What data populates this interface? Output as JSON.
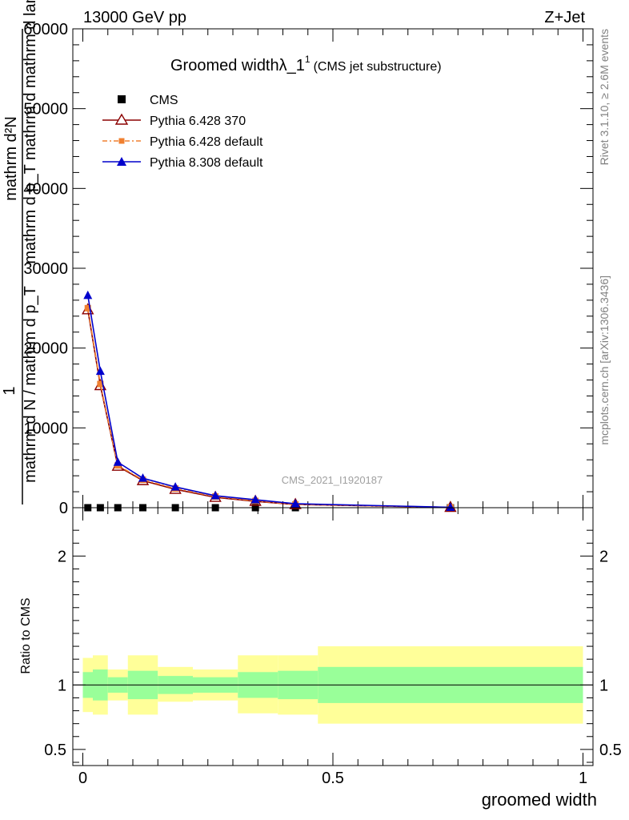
{
  "header": {
    "left": "13000 GeV pp",
    "right": "Z+Jet"
  },
  "side_labels": {
    "rivet": "Rivet 3.1.10, ≥ 2.6M events",
    "mcplots": "mcplots.cern.ch [arXiv:1306.3436]"
  },
  "chart_data": [
    {
      "type": "line",
      "title": "Groomed widthλ_1",
      "title_sup": "1",
      "subtitle": "(CMS jet substructure)",
      "watermark": "CMS_2021_I1920187",
      "ylabel_top": "mathrm d²N",
      "ylabel_mid": "mathrm d p_T mathrm d mathrm d lambda",
      "ylabel_one": "1",
      "ylabel_bottom": "mathrm d N / mathrm d p_T",
      "ylim": [
        0,
        60000
      ],
      "xlim": [
        -0.02,
        1.02
      ],
      "y_ticks": [
        0,
        10000,
        20000,
        30000,
        40000,
        50000,
        60000
      ],
      "y_tick_labels": [
        "0",
        "10000",
        "20000",
        "30000",
        "40000",
        "50000",
        "60000"
      ],
      "legend_position": "top-left",
      "legend": [
        {
          "name": "CMS",
          "color": "#000000",
          "marker": "square"
        },
        {
          "name": "Pythia 6.428 370",
          "color": "#8b0000",
          "marker": "open-triangle"
        },
        {
          "name": "Pythia 6.428 default",
          "color": "#f08030",
          "marker": "small-square"
        },
        {
          "name": "Pythia 8.308 default",
          "color": "#0000cc",
          "marker": "filled-triangle"
        }
      ],
      "series": [
        {
          "name": "CMS",
          "x": [
            0.01,
            0.035,
            0.07,
            0.12,
            0.185,
            0.265,
            0.345,
            0.425,
            0.735
          ],
          "values": [
            0,
            0,
            0,
            0,
            0,
            0,
            0,
            0,
            0
          ]
        },
        {
          "name": "Pythia 6.428 370",
          "x": [
            0.01,
            0.035,
            0.07,
            0.12,
            0.185,
            0.265,
            0.345,
            0.425,
            0.735
          ],
          "values": [
            24800,
            15300,
            5200,
            3400,
            2300,
            1300,
            800,
            400,
            40
          ]
        },
        {
          "name": "Pythia 6.428 default",
          "x": [
            0.01,
            0.035,
            0.07,
            0.12,
            0.185,
            0.265,
            0.345,
            0.425,
            0.735
          ],
          "values": [
            25000,
            15500,
            5300,
            3500,
            2400,
            1400,
            850,
            420,
            40
          ]
        },
        {
          "name": "Pythia 8.308 default",
          "x": [
            0.01,
            0.035,
            0.07,
            0.12,
            0.185,
            0.265,
            0.345,
            0.425,
            0.735
          ],
          "values": [
            26600,
            17100,
            5700,
            3700,
            2600,
            1500,
            1000,
            500,
            50
          ]
        }
      ]
    },
    {
      "type": "area",
      "ylabel": "Ratio to CMS",
      "xlabel": "groomed width",
      "xlim": [
        -0.02,
        1.02
      ],
      "ylim": [
        0.375,
        2.375
      ],
      "x_ticks": [
        0,
        0.5,
        1
      ],
      "x_tick_labels": [
        "0",
        "0.5",
        "1"
      ],
      "y_ticks": [
        0.5,
        1,
        2
      ],
      "y_tick_labels": [
        "0.5",
        "1",
        "2"
      ],
      "colors": {
        "stat_band": "#99ff99",
        "total_band": "#ffff99"
      },
      "bins": [
        {
          "lo": 0.0,
          "hi": 0.02,
          "stat": [
            0.9,
            1.1
          ],
          "total": [
            0.79,
            1.21
          ]
        },
        {
          "lo": 0.02,
          "hi": 0.05,
          "stat": [
            0.88,
            1.12
          ],
          "total": [
            0.77,
            1.23
          ]
        },
        {
          "lo": 0.05,
          "hi": 0.09,
          "stat": [
            0.94,
            1.06
          ],
          "total": [
            0.88,
            1.12
          ]
        },
        {
          "lo": 0.09,
          "hi": 0.15,
          "stat": [
            0.89,
            1.11
          ],
          "total": [
            0.77,
            1.23
          ]
        },
        {
          "lo": 0.15,
          "hi": 0.22,
          "stat": [
            0.93,
            1.07
          ],
          "total": [
            0.87,
            1.14
          ]
        },
        {
          "lo": 0.22,
          "hi": 0.31,
          "stat": [
            0.94,
            1.06
          ],
          "total": [
            0.88,
            1.12
          ]
        },
        {
          "lo": 0.31,
          "hi": 0.39,
          "stat": [
            0.9,
            1.1
          ],
          "total": [
            0.78,
            1.23
          ]
        },
        {
          "lo": 0.39,
          "hi": 0.47,
          "stat": [
            0.89,
            1.11
          ],
          "total": [
            0.77,
            1.23
          ]
        },
        {
          "lo": 0.47,
          "hi": 1.0,
          "stat": [
            0.86,
            1.14
          ],
          "total": [
            0.7,
            1.3
          ]
        }
      ]
    }
  ]
}
